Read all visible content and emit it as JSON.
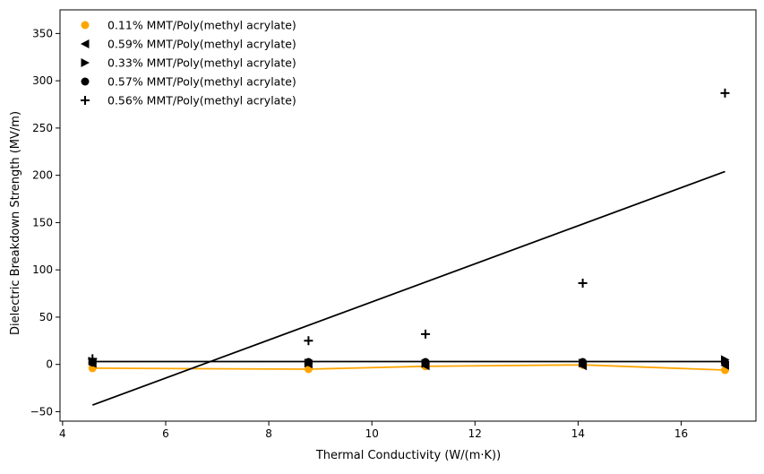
{
  "chart_data": {
    "type": "scatter",
    "title": "",
    "xlabel": "Thermal Conductivity (W/(m·K))",
    "ylabel": "Dielectric Breakdown Strength (MV/m)",
    "xlim": [
      3.95,
      17.45
    ],
    "ylim": [
      -60,
      375
    ],
    "xticks": [
      4,
      6,
      8,
      10,
      12,
      14,
      16
    ],
    "yticks": [
      -50,
      0,
      50,
      100,
      150,
      200,
      250,
      300,
      350
    ],
    "grid": false,
    "legend_position": "top-left",
    "x": [
      4.58,
      8.77,
      11.04,
      14.09,
      16.85
    ],
    "series": [
      {
        "name": "0.11% MMT/Poly(methyl acrylate)",
        "marker": "circle",
        "color": "#FFA500",
        "values": [
          -4.0,
          -5.0,
          -2.0,
          -0.5,
          -6.0
        ],
        "line": {
          "type": "connected",
          "color": "#FFA500"
        }
      },
      {
        "name": "0.59% MMT/Poly(methyl acrylate)",
        "marker": "triangle-left",
        "color": "#000000",
        "values": [
          1.0,
          0.5,
          -1.5,
          -1.5,
          -1.0
        ]
      },
      {
        "name": "0.33% MMT/Poly(methyl acrylate)",
        "marker": "triangle-right",
        "color": "#000000",
        "values": [
          3.5,
          1.5,
          1.0,
          1.5,
          5.0
        ]
      },
      {
        "name": "0.57% MMT/Poly(methyl acrylate)",
        "marker": "circle",
        "color": "#000000",
        "values": [
          2.0,
          2.5,
          2.5,
          2.5,
          2.0
        ],
        "line": {
          "type": "fit",
          "color": "#000000",
          "y_start": 3.0,
          "y_end": 3.0
        }
      },
      {
        "name": "0.56% MMT/Poly(methyl acrylate)",
        "marker": "plus",
        "color": "#000000",
        "values": [
          6.0,
          25.0,
          32.0,
          86.0,
          287.0
        ],
        "line": {
          "type": "fit",
          "color": "#000000",
          "y_start": -43.0,
          "y_end": 204.0
        }
      }
    ]
  }
}
